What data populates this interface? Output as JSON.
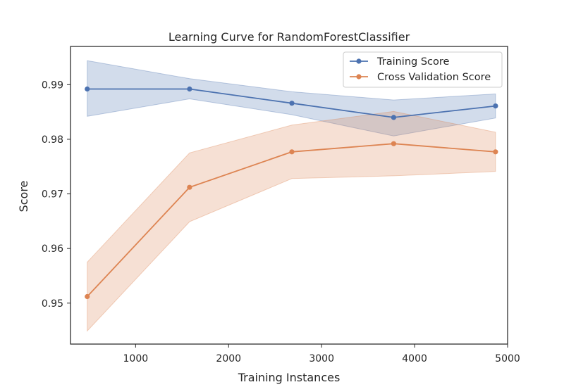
{
  "chart_data": {
    "type": "line",
    "title": "Learning Curve for RandomForestClassifier",
    "xlabel": "Training Instances",
    "ylabel": "Score",
    "xlim": [
      300,
      5000
    ],
    "ylim": [
      0.9425,
      0.997
    ],
    "xticks": [
      1000,
      2000,
      3000,
      4000,
      5000
    ],
    "yticks": [
      0.95,
      0.96,
      0.97,
      0.98,
      0.99
    ],
    "x": [
      480,
      1580,
      2680,
      3775,
      4870
    ],
    "legend_position": "top-right",
    "grid": false,
    "series": [
      {
        "name": "Training Score",
        "color": "#4c72b0",
        "values": [
          0.9892,
          0.9892,
          0.9866,
          0.984,
          0.9861
        ],
        "upper": [
          0.9944,
          0.9911,
          0.9887,
          0.9872,
          0.9883
        ],
        "lower": [
          0.9842,
          0.9874,
          0.9845,
          0.9806,
          0.9839
        ]
      },
      {
        "name": "Cross Validation Score",
        "color": "#dd8452",
        "values": [
          0.9512,
          0.9712,
          0.9777,
          0.9792,
          0.9777
        ],
        "upper": [
          0.9575,
          0.9775,
          0.9826,
          0.9851,
          0.9813
        ],
        "lower": [
          0.9449,
          0.9649,
          0.9728,
          0.9733,
          0.9741
        ]
      }
    ]
  }
}
